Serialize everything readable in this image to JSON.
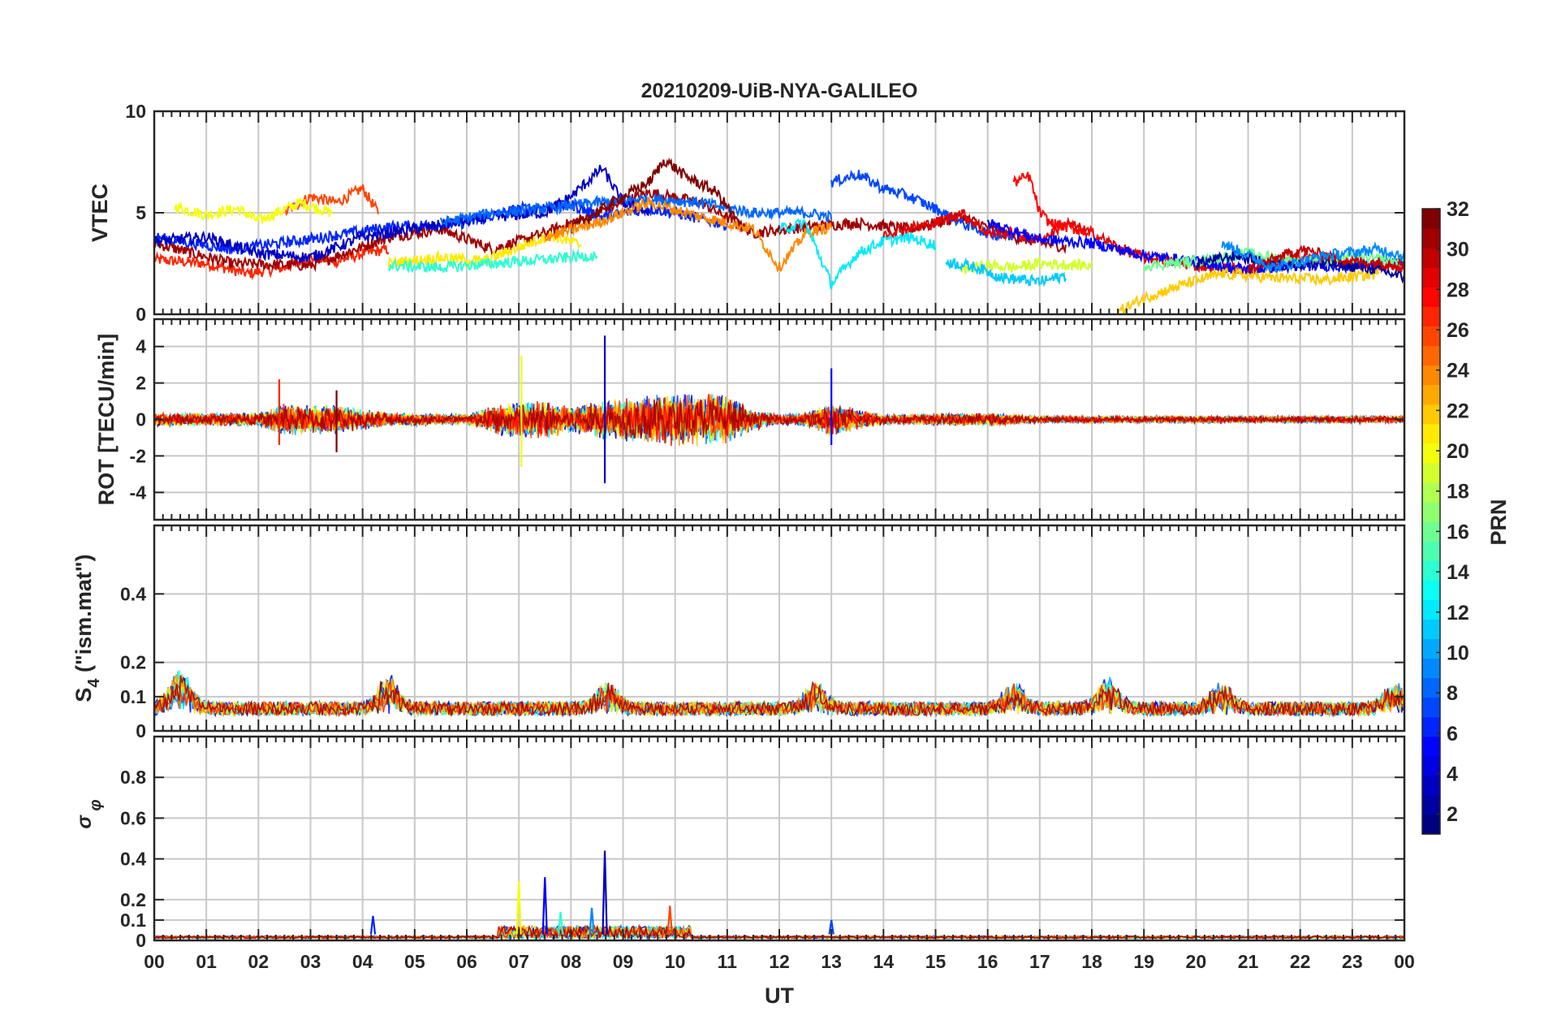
{
  "figure": {
    "title": "20210209-UiB-NYA-GALILEO",
    "xlabel": "UT",
    "x_ticks": [
      "00",
      "01",
      "02",
      "03",
      "04",
      "05",
      "06",
      "07",
      "08",
      "09",
      "10",
      "11",
      "12",
      "13",
      "14",
      "15",
      "16",
      "17",
      "18",
      "19",
      "20",
      "21",
      "22",
      "23",
      "00"
    ]
  },
  "colorbar": {
    "label": "PRN",
    "range": [
      1,
      32
    ],
    "colormap": "jet",
    "ticks": [
      "2",
      "4",
      "6",
      "8",
      "10",
      "12",
      "14",
      "16",
      "18",
      "20",
      "22",
      "24",
      "26",
      "28",
      "30",
      "32"
    ]
  },
  "chart_data": [
    {
      "type": "line",
      "panel": "vtec",
      "ylabel": "VTEC",
      "ylim": [
        0,
        10
      ],
      "y_ticks": [
        "0",
        "5",
        "10"
      ],
      "grid": true,
      "series_style": "many overlapping per-satellite lines colored by PRN",
      "series": [
        {
          "prn": 27,
          "x": [
            0.0,
            1.0,
            1.8,
            2.5,
            3.0,
            3.5,
            4.0,
            4.5
          ],
          "values": [
            2.7,
            2.5,
            2.0,
            2.3,
            2.8,
            2.6,
            3.0,
            3.2
          ]
        },
        {
          "prn": 26,
          "x": [
            2.5,
            3.0,
            3.5,
            4.0,
            4.3
          ],
          "values": [
            5.0,
            5.8,
            5.5,
            6.2,
            5.0
          ]
        },
        {
          "prn": 20,
          "x": [
            0.4,
            1.0,
            1.6,
            2.0,
            2.8,
            3.4
          ],
          "values": [
            5.3,
            4.9,
            5.2,
            4.6,
            5.5,
            5.0
          ]
        },
        {
          "prn": 31,
          "x": [
            0.0,
            1.5,
            3.0,
            4.5,
            5.5,
            6.5,
            7.5,
            8.5,
            9.5,
            10.5,
            11.5,
            12.5,
            13.5,
            14.5,
            15.5,
            16.5,
            17.5
          ],
          "values": [
            3.5,
            2.5,
            2.4,
            3.8,
            4.2,
            3.2,
            4.0,
            5.0,
            6.0,
            5.5,
            4.0,
            4.3,
            4.5,
            4.2,
            4.8,
            3.8,
            3.3
          ]
        },
        {
          "prn": 6,
          "x": [
            0.0,
            1.5,
            3.0,
            4.5,
            6.0,
            7.0,
            8.0,
            8.6,
            9.5,
            10.0,
            11.0
          ],
          "values": [
            3.8,
            3.2,
            3.7,
            4.3,
            4.5,
            5.2,
            5.4,
            4.8,
            5.2,
            5.0,
            4.4
          ]
        },
        {
          "prn": 3,
          "x": [
            0.0,
            1.0,
            2.0,
            3.0,
            4.0,
            5.5,
            6.5,
            7.5,
            8.0,
            8.6,
            9.0,
            9.5
          ],
          "values": [
            3.6,
            3.8,
            3.0,
            2.8,
            3.8,
            4.4,
            4.8,
            5.0,
            5.8,
            7.2,
            5.5,
            5.0
          ]
        },
        {
          "prn": 8,
          "x": [
            5.5,
            6.5,
            7.5,
            8.5,
            9.5,
            10.5,
            11.5,
            12.5,
            13.0
          ],
          "values": [
            4.5,
            5.0,
            5.2,
            5.5,
            5.7,
            5.5,
            5.0,
            5.0,
            4.8
          ]
        },
        {
          "prn": 21,
          "x": [
            4.5,
            5.5,
            6.3,
            7.0,
            7.6,
            8.2
          ],
          "values": [
            2.5,
            2.8,
            2.6,
            3.3,
            3.9,
            3.4
          ]
        },
        {
          "prn": 14,
          "x": [
            4.5,
            5.5,
            6.5,
            7.5,
            8.0,
            8.5
          ],
          "values": [
            2.4,
            2.3,
            2.5,
            2.7,
            2.8,
            2.9
          ]
        },
        {
          "prn": 32,
          "x": [
            8.0,
            8.8,
            9.5,
            9.8,
            10.2,
            10.8,
            11.3
          ],
          "values": [
            4.2,
            5.5,
            6.5,
            7.6,
            6.8,
            6.0,
            4.2
          ]
        },
        {
          "prn": 24,
          "x": [
            7.5,
            8.5,
            9.5,
            10.5,
            11.5,
            12.0,
            12.5,
            13.0
          ],
          "values": [
            3.8,
            4.5,
            5.5,
            4.8,
            4.2,
            2.3,
            4.0,
            4.3
          ]
        },
        {
          "prn": 12,
          "x": [
            12.0,
            12.5,
            13.0,
            13.5,
            14.0,
            14.5,
            15.0
          ],
          "values": [
            4.2,
            4.5,
            1.5,
            3.0,
            3.6,
            3.8,
            3.4
          ]
        },
        {
          "prn": 7,
          "x": [
            13.0,
            13.5,
            14.0,
            14.5,
            15.0,
            15.5,
            16.0,
            16.5
          ],
          "values": [
            6.5,
            6.9,
            6.2,
            5.8,
            5.2,
            4.5,
            4.0,
            3.8
          ]
        },
        {
          "prn": 29,
          "x": [
            14.0,
            15.0,
            15.5,
            16.0,
            16.5,
            17.0,
            17.5,
            18.0,
            18.5,
            19.0,
            20.0,
            21.0,
            22.0,
            23.0,
            24.0
          ],
          "values": [
            4.0,
            4.5,
            5.0,
            4.0,
            4.0,
            3.6,
            4.5,
            4.0,
            3.3,
            2.8,
            2.4,
            2.2,
            2.8,
            2.5,
            2.3
          ]
        },
        {
          "prn": 28,
          "x": [
            16.5,
            16.8,
            17.0,
            17.2,
            17.5,
            18.0
          ],
          "values": [
            6.5,
            6.8,
            5.0,
            4.5,
            4.3,
            4.0
          ]
        },
        {
          "prn": 5,
          "x": [
            16.0,
            17.0,
            18.0,
            19.0,
            20.0,
            21.0,
            22.0,
            23.0,
            24.0
          ],
          "values": [
            4.5,
            3.7,
            3.5,
            2.9,
            2.6,
            2.2,
            2.4,
            2.4,
            2.6
          ]
        },
        {
          "prn": 19,
          "x": [
            15.5,
            16.0,
            16.5,
            17.0,
            18.0
          ],
          "values": [
            2.2,
            2.4,
            2.3,
            2.5,
            2.4
          ]
        },
        {
          "prn": 11,
          "x": [
            15.2,
            15.8,
            16.3,
            17.0,
            17.5
          ],
          "values": [
            2.6,
            2.3,
            1.8,
            1.6,
            1.9
          ]
        },
        {
          "prn": 22,
          "x": [
            18.5,
            19.0,
            19.8,
            20.5,
            21.5,
            22.5,
            23.5
          ],
          "values": [
            0.1,
            0.8,
            1.5,
            2.0,
            1.8,
            1.7,
            2.0
          ]
        },
        {
          "prn": 16,
          "x": [
            19.0,
            20.0,
            21.0,
            22.0,
            23.0,
            24.0
          ],
          "values": [
            2.4,
            2.6,
            3.0,
            2.6,
            2.8,
            2.6
          ]
        },
        {
          "prn": 2,
          "x": [
            20.0,
            20.8,
            21.5,
            22.5,
            23.5,
            24.0
          ],
          "values": [
            2.5,
            2.9,
            2.4,
            2.5,
            2.2,
            1.8
          ]
        },
        {
          "prn": 30,
          "x": [
            21.0,
            22.0,
            23.0,
            24.0
          ],
          "values": [
            2.2,
            3.2,
            2.6,
            2.5
          ]
        },
        {
          "prn": 9,
          "x": [
            20.5,
            21.5,
            22.5,
            23.5,
            24.0
          ],
          "values": [
            3.5,
            2.3,
            2.9,
            3.2,
            2.9
          ]
        }
      ]
    },
    {
      "type": "line",
      "panel": "rot",
      "ylabel": "ROT [TECU/min]",
      "ylim": [
        -5.5,
        5.5
      ],
      "y_ticks": [
        "-4",
        "-2",
        "0",
        "2",
        "4"
      ],
      "grid": true,
      "series_style": "noisy per-satellite rate of TEC, centred on zero",
      "noise_envelope": {
        "x": [
          0,
          2,
          2.5,
          3.5,
          4,
          4.5,
          6,
          6.5,
          7,
          7.5,
          8,
          8.5,
          9,
          9.5,
          10,
          10.5,
          11,
          11.5,
          12,
          12.5,
          13,
          13.5,
          14,
          16,
          17,
          18,
          21,
          24
        ],
        "amplitude": [
          0.4,
          0.4,
          0.9,
          0.9,
          0.6,
          0.4,
          0.3,
          0.8,
          1.1,
          1.1,
          0.8,
          1.1,
          1.2,
          1.5,
          1.6,
          1.5,
          1.5,
          0.6,
          0.3,
          0.4,
          1.0,
          0.6,
          0.3,
          0.4,
          0.2,
          0.2,
          0.2,
          0.2
        ]
      },
      "spikes": [
        {
          "prn": 3,
          "x": 8.65,
          "max": 4.6,
          "min": -3.5
        },
        {
          "prn": 20,
          "x": 7.05,
          "max": 3.5,
          "min": -2.6
        },
        {
          "prn": 5,
          "x": 13.0,
          "max": 2.8,
          "min": -1.4
        },
        {
          "prn": 27,
          "x": 2.4,
          "max": 2.2,
          "min": -1.4
        },
        {
          "prn": 32,
          "x": 3.5,
          "max": 1.6,
          "min": -1.8
        }
      ]
    },
    {
      "type": "line",
      "panel": "s4",
      "ylabel": "S4 (\"ism.mat\")",
      "ylim": [
        0,
        0.6
      ],
      "y_ticks": [
        "0",
        "0.1",
        "0.2",
        "0.4"
      ],
      "grid": true,
      "series_style": "low-level amplitude scintillation index per satellite",
      "baseline": 0.06,
      "peaks": [
        {
          "x": 0.5,
          "value": 0.19
        },
        {
          "x": 4.5,
          "value": 0.17
        },
        {
          "x": 8.7,
          "value": 0.15
        },
        {
          "x": 12.7,
          "value": 0.15
        },
        {
          "x": 16.5,
          "value": 0.14
        },
        {
          "x": 18.3,
          "value": 0.16
        },
        {
          "x": 20.5,
          "value": 0.14
        },
        {
          "x": 23.8,
          "value": 0.14
        }
      ]
    },
    {
      "type": "line",
      "panel": "sigma_phi",
      "ylabel": "σ φ",
      "ylim": [
        0,
        1
      ],
      "y_ticks": [
        "0",
        "0.1",
        "0.2",
        "0.4",
        "0.6",
        "0.8"
      ],
      "grid": true,
      "series_style": "phase scintillation index per satellite",
      "baseline": 0.02,
      "spikes": [
        {
          "prn": 3,
          "x": 8.65,
          "value": 0.44
        },
        {
          "prn": 5,
          "x": 7.5,
          "value": 0.31
        },
        {
          "prn": 20,
          "x": 7.0,
          "value": 0.29
        },
        {
          "prn": 6,
          "x": 4.2,
          "value": 0.12
        },
        {
          "prn": 26,
          "x": 9.9,
          "value": 0.17
        },
        {
          "prn": 14,
          "x": 7.8,
          "value": 0.14
        },
        {
          "prn": 9,
          "x": 8.4,
          "value": 0.16
        },
        {
          "prn": 7,
          "x": 13.0,
          "value": 0.1
        }
      ]
    }
  ]
}
